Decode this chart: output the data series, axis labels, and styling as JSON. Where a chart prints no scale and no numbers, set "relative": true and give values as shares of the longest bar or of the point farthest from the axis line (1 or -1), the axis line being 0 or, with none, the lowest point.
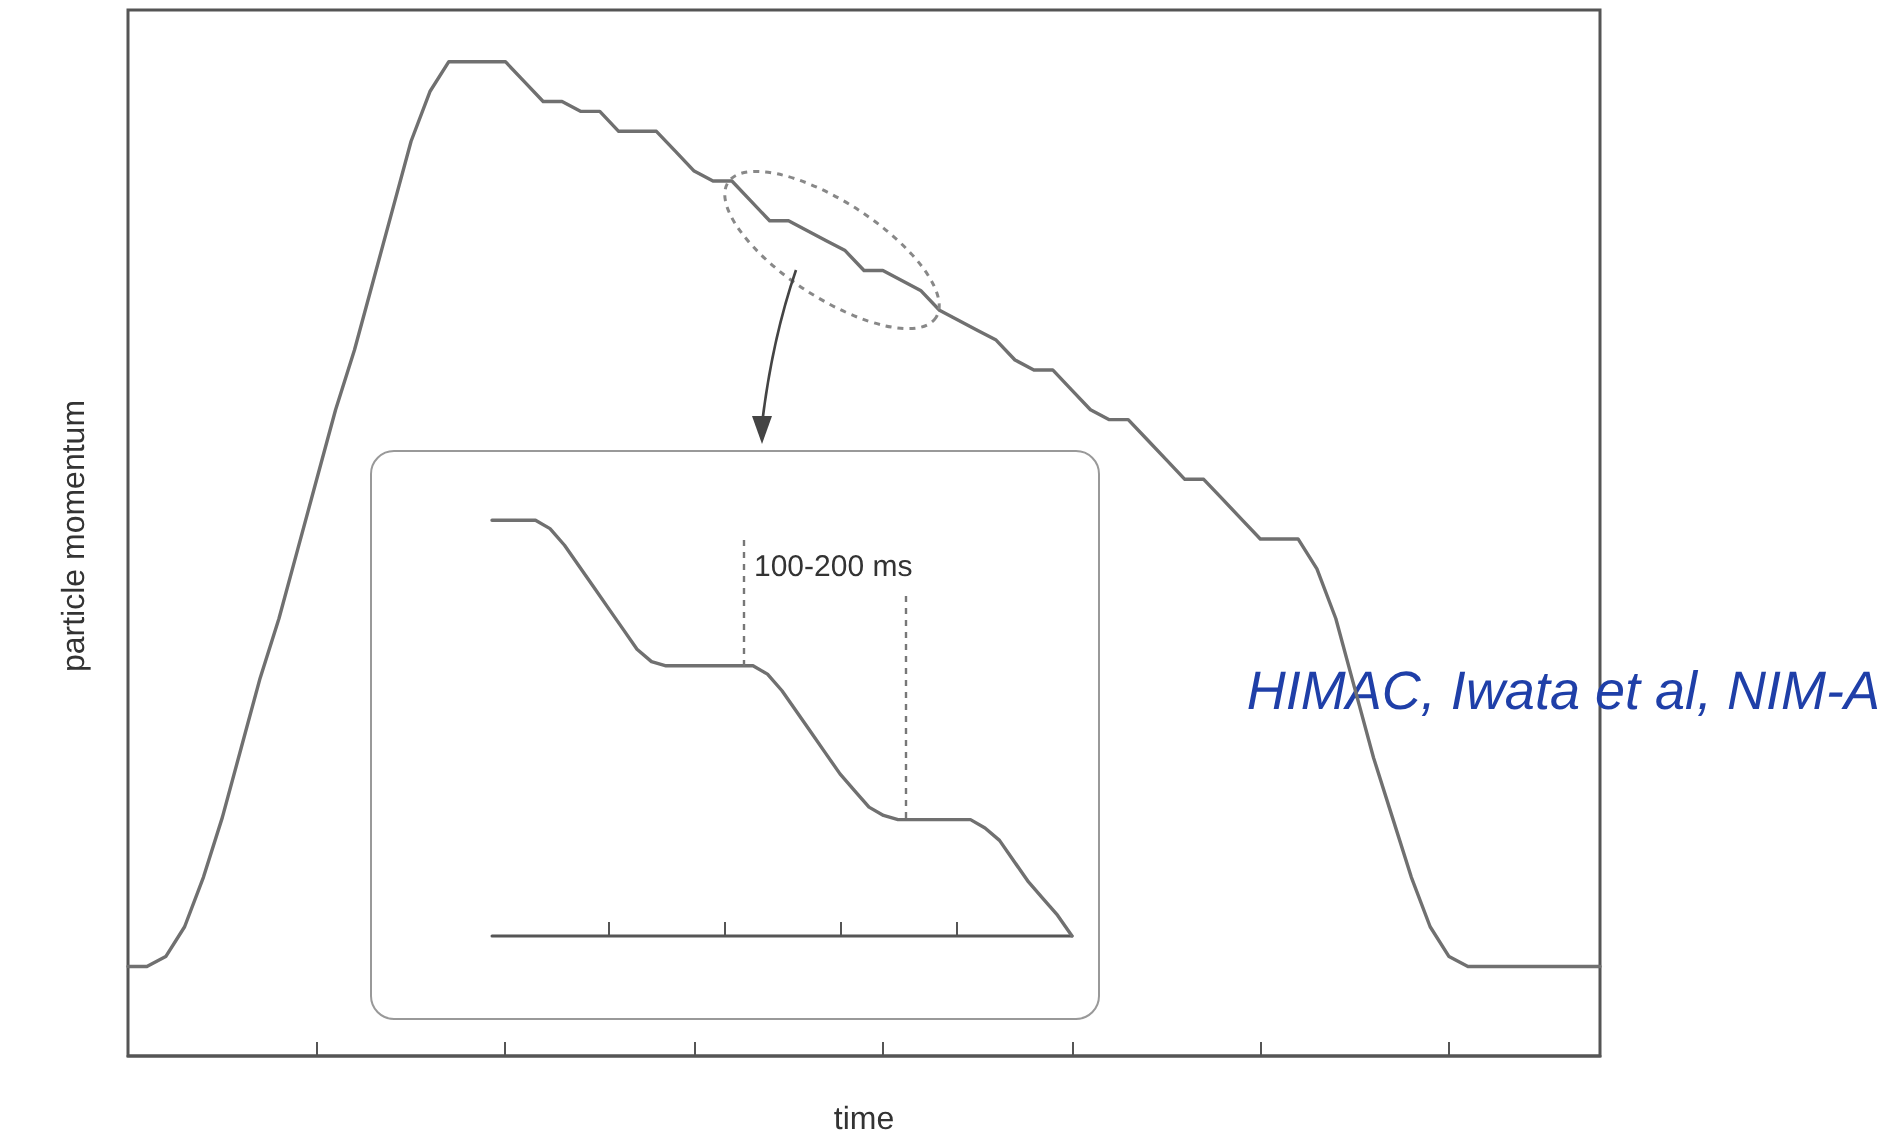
{
  "chart_data": [
    {
      "type": "line",
      "relative": true,
      "xlabel": "time",
      "ylabel": "particle momentum",
      "categories": [
        null,
        null,
        null,
        null,
        null,
        null,
        null,
        null,
        null,
        null,
        null,
        null,
        null,
        null,
        null,
        null,
        null,
        null,
        null,
        null,
        null,
        null,
        null,
        null,
        null,
        null,
        null,
        null,
        null,
        null,
        null,
        null,
        null,
        null,
        null,
        null,
        null,
        null,
        null,
        null,
        null,
        null,
        null,
        null,
        null,
        null,
        null,
        null,
        null,
        null,
        null,
        null,
        null,
        null,
        null,
        null,
        null,
        null,
        null,
        null,
        null,
        null,
        null,
        null,
        null,
        null,
        null,
        null,
        null,
        null,
        null,
        null,
        null,
        null,
        null,
        null,
        null,
        null,
        null
      ],
      "series": [
        {
          "color": "#707070",
          "values": [
            0.09,
            0.09,
            0.1,
            0.13,
            0.18,
            0.24,
            0.31,
            0.38,
            0.44,
            0.51,
            0.58,
            0.65,
            0.71,
            0.78,
            0.85,
            0.92,
            0.97,
            1.0,
            1.0,
            1.0,
            1.0,
            0.98,
            0.96,
            0.96,
            0.95,
            0.95,
            0.93,
            0.93,
            0.93,
            0.91,
            0.89,
            0.88,
            0.88,
            0.86,
            0.84,
            0.84,
            0.83,
            0.82,
            0.81,
            0.79,
            0.79,
            0.78,
            0.77,
            0.75,
            0.74,
            0.73,
            0.72,
            0.7,
            0.69,
            0.69,
            0.67,
            0.65,
            0.64,
            0.64,
            0.62,
            0.6,
            0.58,
            0.58,
            0.56,
            0.54,
            0.52,
            0.52,
            0.52,
            0.49,
            0.44,
            0.37,
            0.3,
            0.24,
            0.18,
            0.13,
            0.1,
            0.09,
            0.09,
            0.09,
            0.09,
            0.09,
            0.09,
            0.09,
            0.09
          ]
        }
      ],
      "annotations": [
        "HIMAC, Iwata et al, NIM-A"
      ]
    },
    {
      "type": "line",
      "relative": true,
      "categories": [
        null,
        null,
        null,
        null,
        null,
        null,
        null,
        null,
        null,
        null,
        null,
        null,
        null,
        null,
        null,
        null,
        null,
        null,
        null,
        null,
        null,
        null,
        null,
        null,
        null,
        null,
        null,
        null,
        null,
        null,
        null,
        null,
        null,
        null,
        null,
        null,
        null,
        null,
        null,
        null,
        null
      ],
      "series": [
        {
          "color": "#707070",
          "values": [
            1,
            1,
            1,
            1,
            0.98,
            0.94,
            0.89,
            0.84,
            0.79,
            0.74,
            0.69,
            0.66,
            0.65,
            0.65,
            0.65,
            0.65,
            0.65,
            0.65,
            0.65,
            0.63,
            0.59,
            0.54,
            0.49,
            0.44,
            0.39,
            0.35,
            0.31,
            0.29,
            0.28,
            0.28,
            0.28,
            0.28,
            0.28,
            0.28,
            0.26,
            0.23,
            0.18,
            0.13,
            0.09,
            0.05,
            0
          ]
        }
      ],
      "annotations": [
        "100-200 ms"
      ]
    }
  ]
}
